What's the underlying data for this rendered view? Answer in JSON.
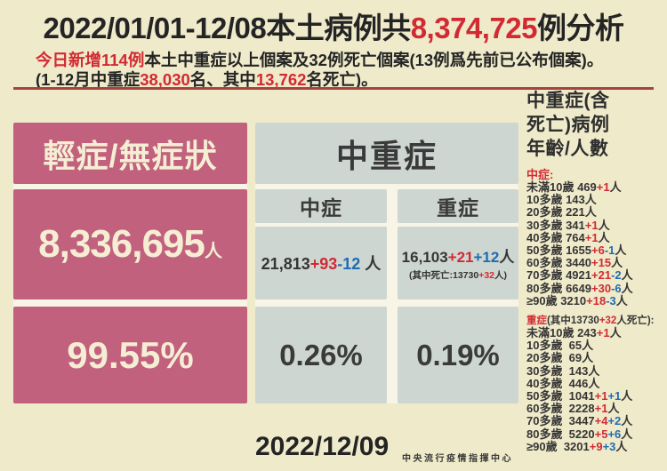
{
  "colors": {
    "background": "#efeaca",
    "panel_pink": "#c2617e",
    "panel_gray": "#cdd6d1",
    "cream_text": "#f5eed4",
    "dark_text": "#353535",
    "red": "#d22a33",
    "blue": "#1f6cb0",
    "divider": "#a8423e"
  },
  "header": {
    "title_pre": "2022/01/01-12/08本土病例共",
    "title_num": "8,374,725",
    "title_post": "例分析",
    "line2_red": "今日新增114例",
    "line2_rest": "本土中重症以上個案及32例死亡個案(13例爲先前已公布個案)。",
    "line3_p1": "(1-12月中重症",
    "line3_r1": "38,030",
    "line3_p2": "名、其中",
    "line3_r2": "13,762",
    "line3_p3": "名死亡)。"
  },
  "mild": {
    "header": "輕症/無症狀",
    "count": "8,336,695",
    "count_unit": "人",
    "percent": "99.55%"
  },
  "ms": {
    "header": "中重症",
    "cols": [
      {
        "label": "中症",
        "count": "21,813",
        "add": "+93",
        "sub": "-12",
        "unit": " 人",
        "percent": "0.26%"
      },
      {
        "label": "重症",
        "count": "16,103",
        "add": "+21",
        "sub": "+12",
        "unit": "人",
        "note_p1": "(其中死亡:13730",
        "note_r": "+32",
        "note_p2": "人)",
        "percent": "0.19%"
      }
    ]
  },
  "sidebar": {
    "title_lines": [
      "中重症(含",
      "死亡)病例",
      "年齡/人數"
    ],
    "moderate_label": "中症:",
    "moderate_rows": [
      [
        {
          "t": "未滿10歲 469",
          "c": "d"
        },
        {
          "t": "+1",
          "c": "r"
        },
        {
          "t": "人",
          "c": "d"
        }
      ],
      [
        {
          "t": "10多歲 143人",
          "c": "d"
        }
      ],
      [
        {
          "t": "20多歲 221人",
          "c": "d"
        }
      ],
      [
        {
          "t": "30多歲 341",
          "c": "d"
        },
        {
          "t": "+1",
          "c": "r"
        },
        {
          "t": "人",
          "c": "d"
        }
      ],
      [
        {
          "t": "40多歲 764",
          "c": "d"
        },
        {
          "t": "+1",
          "c": "r"
        },
        {
          "t": "人",
          "c": "d"
        }
      ],
      [
        {
          "t": "50多歲 1655",
          "c": "d"
        },
        {
          "t": "+6",
          "c": "r"
        },
        {
          "t": "-1",
          "c": "b"
        },
        {
          "t": "人",
          "c": "d"
        }
      ],
      [
        {
          "t": "60多歲 3440",
          "c": "d"
        },
        {
          "t": "+15",
          "c": "r"
        },
        {
          "t": "人",
          "c": "d"
        }
      ],
      [
        {
          "t": "70多歲 4921",
          "c": "d"
        },
        {
          "t": "+21",
          "c": "r"
        },
        {
          "t": "-2",
          "c": "b"
        },
        {
          "t": "人",
          "c": "d"
        }
      ],
      [
        {
          "t": "80多歲 6649",
          "c": "d"
        },
        {
          "t": "+30",
          "c": "r"
        },
        {
          "t": "-6",
          "c": "b"
        },
        {
          "t": "人",
          "c": "d"
        }
      ],
      [
        {
          "t": "≥90歲 3210",
          "c": "d"
        },
        {
          "t": "+18",
          "c": "r"
        },
        {
          "t": "-3",
          "c": "b"
        },
        {
          "t": "人",
          "c": "d"
        }
      ]
    ],
    "severe_label": [
      [
        {
          "t": "重症",
          "c": "r"
        },
        {
          "t": "(其中13730",
          "c": "d"
        },
        {
          "t": "+32",
          "c": "r"
        },
        {
          "t": "人死亡):",
          "c": "d"
        }
      ]
    ],
    "severe_rows": [
      [
        {
          "t": "未滿10歲 243",
          "c": "d"
        },
        {
          "t": "+1",
          "c": "r"
        },
        {
          "t": "人",
          "c": "d"
        }
      ],
      [
        {
          "t": "10多歲  65人",
          "c": "d"
        }
      ],
      [
        {
          "t": "20多歲  69人",
          "c": "d"
        }
      ],
      [
        {
          "t": "30多歲  143人",
          "c": "d"
        }
      ],
      [
        {
          "t": "40多歲  446人",
          "c": "d"
        }
      ],
      [
        {
          "t": "50多歲  1041",
          "c": "d"
        },
        {
          "t": "+1",
          "c": "r"
        },
        {
          "t": "+1",
          "c": "b"
        },
        {
          "t": "人",
          "c": "d"
        }
      ],
      [
        {
          "t": "60多歲  2228",
          "c": "d"
        },
        {
          "t": "+1",
          "c": "r"
        },
        {
          "t": "人",
          "c": "d"
        }
      ],
      [
        {
          "t": "70多歲  3447",
          "c": "d"
        },
        {
          "t": "+4",
          "c": "r"
        },
        {
          "t": "+2",
          "c": "b"
        },
        {
          "t": "人",
          "c": "d"
        }
      ],
      [
        {
          "t": "80多歲  5220",
          "c": "d"
        },
        {
          "t": "+5",
          "c": "r"
        },
        {
          "t": "+6",
          "c": "b"
        },
        {
          "t": "人",
          "c": "d"
        }
      ],
      [
        {
          "t": "≥90歲  3201",
          "c": "d"
        },
        {
          "t": "+9",
          "c": "r"
        },
        {
          "t": "+3",
          "c": "b"
        },
        {
          "t": "人",
          "c": "d"
        }
      ]
    ]
  },
  "footer": {
    "date": "2022/12/09",
    "org": "中央流行疫情指揮中心"
  },
  "chart_data": {
    "type": "table",
    "title": "2022/01/01-12/08本土病例共8,374,725例分析",
    "subtitle": "今日新增114例本土中重症以上個案及32例死亡個案(13例爲先前已公布個案)。(1-12月中重症38,030名、其中13,762名死亡)。",
    "date": "2022/12/09",
    "source": "中央流行疫情指揮中心",
    "total_cases": 8374725,
    "categories": [
      "輕症/無症狀",
      "中症",
      "重症"
    ],
    "counts": [
      8336695,
      21813,
      16103
    ],
    "percents": [
      "99.55%",
      "0.26%",
      "0.19%"
    ],
    "deltas": [
      "",
      "+93-12",
      "+21+12"
    ],
    "severe_deaths": "13730+32",
    "age_categories": [
      "未滿10歲",
      "10多歲",
      "20多歲",
      "30多歲",
      "40多歲",
      "50多歲",
      "60多歲",
      "70多歲",
      "80多歲",
      "≥90歲"
    ],
    "series": [
      {
        "name": "中症",
        "values": [
          469,
          143,
          221,
          341,
          764,
          1655,
          3440,
          4921,
          6649,
          3210
        ],
        "deltas": [
          "+1",
          "",
          "",
          "+1",
          "+1",
          "+6-1",
          "+15",
          "+21-2",
          "+30-6",
          "+18-3"
        ]
      },
      {
        "name": "重症",
        "values": [
          243,
          65,
          69,
          143,
          446,
          1041,
          2228,
          3447,
          5220,
          3201
        ],
        "deltas": [
          "+1",
          "",
          "",
          "",
          "",
          "+1+1",
          "+1",
          "+4+2",
          "+5+6",
          "+9+3"
        ]
      }
    ]
  }
}
